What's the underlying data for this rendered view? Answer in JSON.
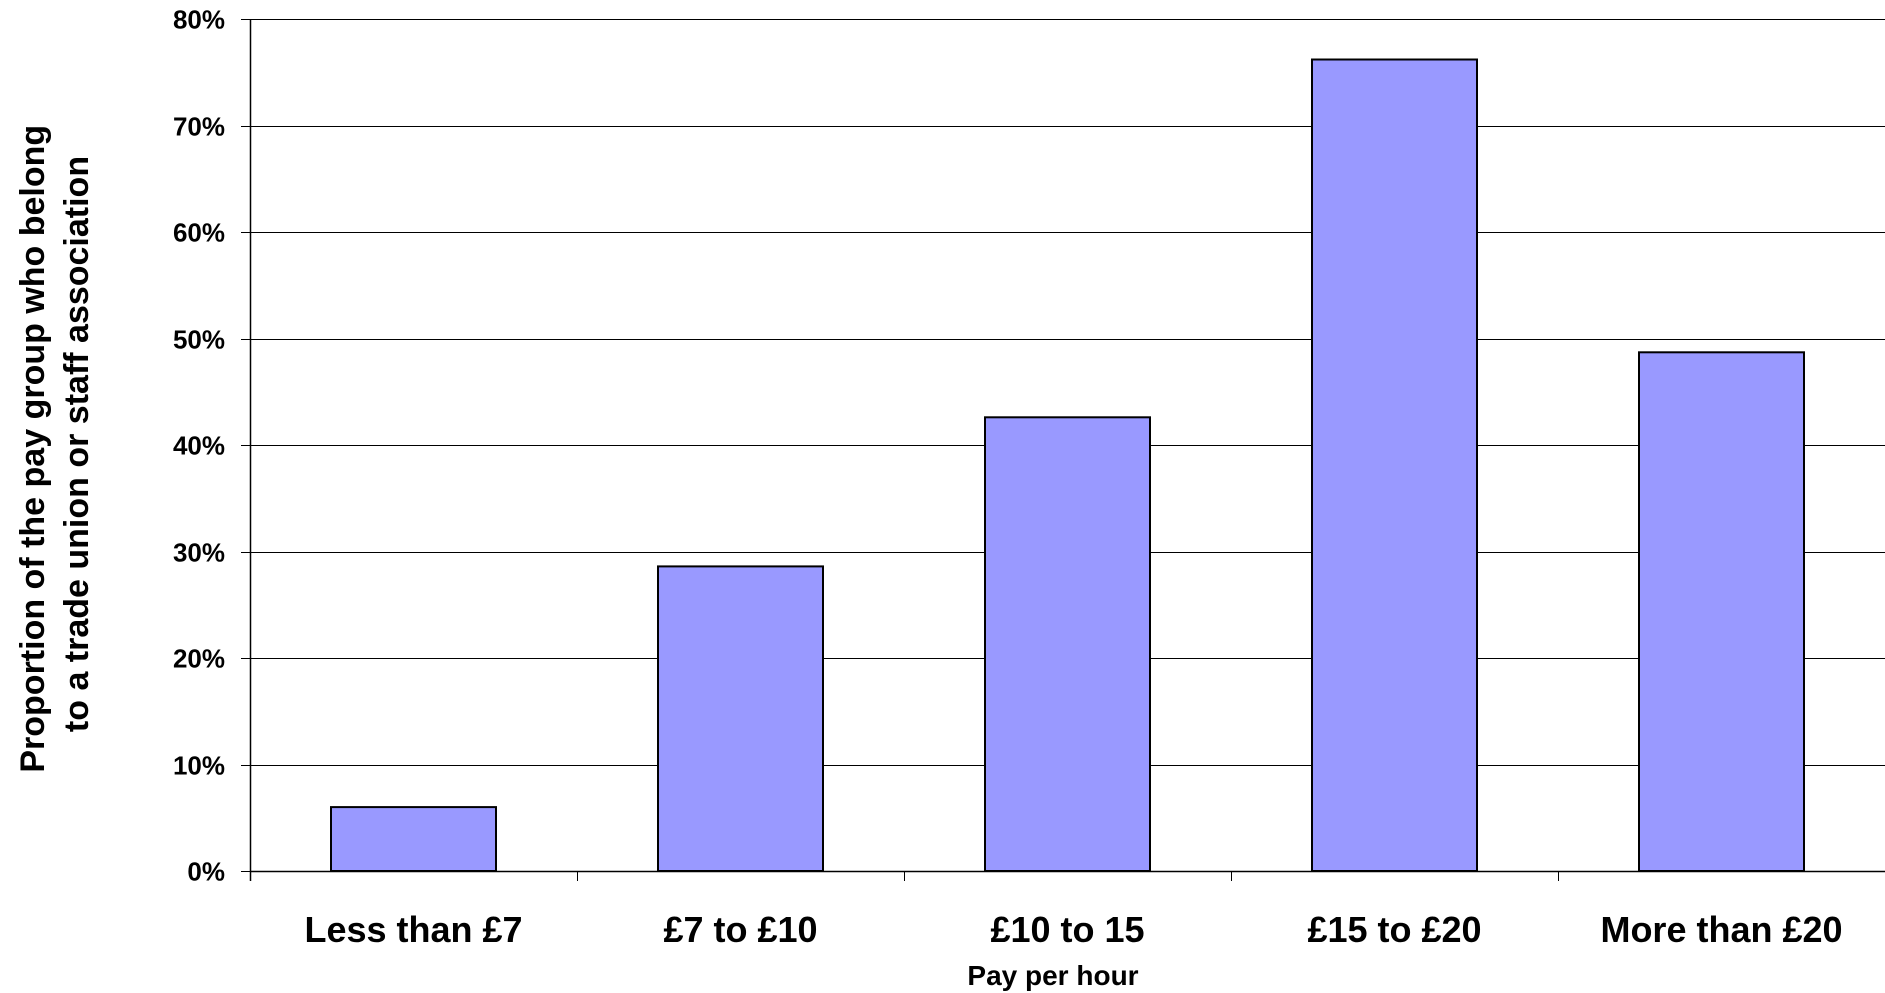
{
  "chart_data": {
    "type": "bar",
    "categories": [
      "Less than £7",
      "£7 to £10",
      "£10 to 15",
      "£15 to £20",
      "More than £20"
    ],
    "values": [
      0.06,
      0.286,
      0.426,
      0.762,
      0.487
    ],
    "y_ticks": [
      "0%",
      "10%",
      "20%",
      "30%",
      "40%",
      "50%",
      "60%",
      "70%",
      "80%"
    ],
    "ylim": [
      0,
      0.8
    ],
    "xlabel": "Pay per hour",
    "ylabel_lines": [
      "Proportion of the pay group who belong",
      "to a trade union or staff association"
    ],
    "grid": true,
    "legend": "none",
    "bar_color": "#9999ff",
    "bar_outline_color": "#000000"
  }
}
